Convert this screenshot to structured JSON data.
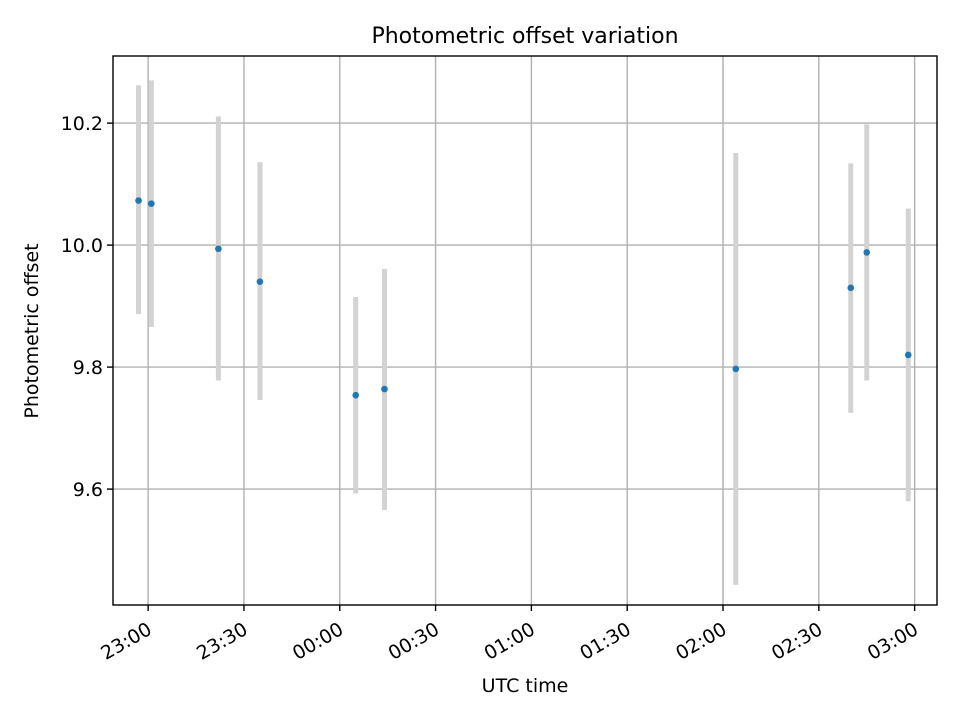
{
  "chart_data": {
    "type": "scatter",
    "title": "Photometric offset variation",
    "xlabel": "UTC time",
    "ylabel": "Photometric offset",
    "x_ticks": [
      "23:00",
      "23:30",
      "00:00",
      "00:30",
      "01:00",
      "01:30",
      "02:00",
      "02:30",
      "03:00"
    ],
    "y_ticks": [
      "9.6",
      "9.8",
      "10.0",
      "10.2"
    ],
    "xlim": [
      "22:49",
      "03:07"
    ],
    "ylim": [
      9.41,
      10.31
    ],
    "grid": true,
    "points": [
      {
        "x": "22:57",
        "y": 10.073,
        "lo": 9.887,
        "hi": 10.262
      },
      {
        "x": "23:01",
        "y": 10.068,
        "lo": 9.866,
        "hi": 10.27
      },
      {
        "x": "23:22",
        "y": 9.994,
        "lo": 9.778,
        "hi": 10.211
      },
      {
        "x": "23:35",
        "y": 9.94,
        "lo": 9.746,
        "hi": 10.136
      },
      {
        "x": "00:05",
        "y": 9.754,
        "lo": 9.593,
        "hi": 9.915
      },
      {
        "x": "00:14",
        "y": 9.764,
        "lo": 9.566,
        "hi": 9.961
      },
      {
        "x": "02:04",
        "y": 9.797,
        "lo": 9.443,
        "hi": 10.151
      },
      {
        "x": "02:40",
        "y": 9.93,
        "lo": 9.725,
        "hi": 10.134
      },
      {
        "x": "02:45",
        "y": 9.988,
        "lo": 9.778,
        "hi": 10.198
      },
      {
        "x": "02:58",
        "y": 9.82,
        "lo": 9.58,
        "hi": 10.06
      }
    ],
    "colors": {
      "marker": "#1f77b4",
      "errorbar": "#d3d3d3",
      "grid": "#b0b0b0"
    }
  }
}
